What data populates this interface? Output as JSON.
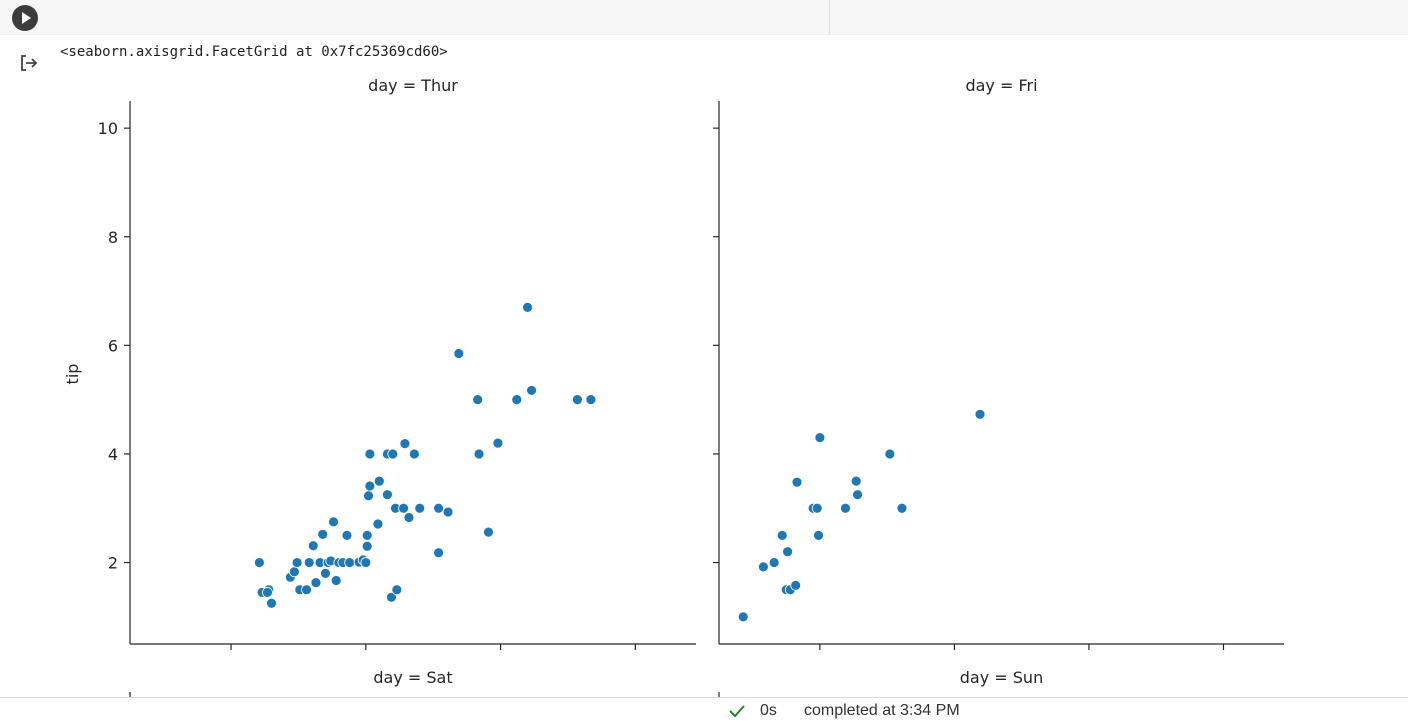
{
  "cell": {
    "output_repr": "<seaborn.axisgrid.FacetGrid at 0x7fc25369cd60>"
  },
  "status": {
    "elapsed": "0s",
    "completed": "completed at 3:34 PM"
  },
  "icons": {
    "run": "play-icon",
    "output": "output-arrow-icon",
    "status": "check-icon"
  },
  "chart_data": {
    "type": "scatter",
    "ylabel": "tip",
    "ylim": [
      0.5,
      10.5
    ],
    "yticks": [
      2,
      4,
      6,
      8,
      10
    ],
    "point_color": "#1f77b4",
    "panels": [
      {
        "title": "day = Thur",
        "points": [
          [
            13.6,
            2.0
          ],
          [
            13.8,
            1.45
          ],
          [
            14.3,
            1.5
          ],
          [
            14.2,
            1.45
          ],
          [
            14.5,
            1.25
          ],
          [
            15.9,
            1.73
          ],
          [
            16.2,
            1.83
          ],
          [
            16.4,
            2.0
          ],
          [
            16.6,
            1.5
          ],
          [
            17.1,
            1.5
          ],
          [
            17.3,
            2.0
          ],
          [
            17.6,
            2.31
          ],
          [
            17.8,
            1.63
          ],
          [
            18.1,
            2.0
          ],
          [
            18.3,
            2.52
          ],
          [
            18.5,
            1.8
          ],
          [
            18.7,
            2.0
          ],
          [
            18.9,
            2.03
          ],
          [
            19.1,
            2.75
          ],
          [
            19.3,
            1.67
          ],
          [
            19.5,
            2.0
          ],
          [
            19.8,
            2.0
          ],
          [
            20.1,
            2.5
          ],
          [
            20.3,
            2.0
          ],
          [
            21.0,
            2.01
          ],
          [
            21.3,
            2.05
          ],
          [
            21.5,
            2.0
          ],
          [
            21.6,
            2.3
          ],
          [
            21.6,
            2.5
          ],
          [
            21.7,
            3.23
          ],
          [
            21.8,
            3.41
          ],
          [
            21.8,
            4.0
          ],
          [
            22.4,
            2.71
          ],
          [
            22.5,
            3.5
          ],
          [
            23.1,
            3.25
          ],
          [
            23.1,
            4.0
          ],
          [
            23.4,
            1.36
          ],
          [
            23.5,
            4.0
          ],
          [
            23.7,
            3.0
          ],
          [
            23.8,
            1.5
          ],
          [
            24.3,
            3.0
          ],
          [
            24.4,
            4.19
          ],
          [
            24.7,
            2.83
          ],
          [
            25.1,
            4.0
          ],
          [
            25.5,
            3.0
          ],
          [
            26.9,
            3.0
          ],
          [
            26.9,
            2.18
          ],
          [
            27.6,
            2.93
          ],
          [
            28.4,
            5.85
          ],
          [
            29.8,
            5.0
          ],
          [
            29.9,
            4.0
          ],
          [
            30.6,
            2.56
          ],
          [
            31.3,
            4.2
          ],
          [
            32.7,
            5.0
          ],
          [
            33.5,
            6.7
          ],
          [
            33.8,
            5.17
          ],
          [
            37.2,
            5.0
          ],
          [
            38.2,
            5.0
          ]
        ]
      },
      {
        "title": "day = Fri",
        "points": [
          [
            5.8,
            1.0
          ],
          [
            7.3,
            1.92
          ],
          [
            8.1,
            2.0
          ],
          [
            8.7,
            2.5
          ],
          [
            9.0,
            1.5
          ],
          [
            9.1,
            2.2
          ],
          [
            9.3,
            1.5
          ],
          [
            9.7,
            1.58
          ],
          [
            9.8,
            3.48
          ],
          [
            11.0,
            3.0
          ],
          [
            11.3,
            3.0
          ],
          [
            11.4,
            2.5
          ],
          [
            11.5,
            4.3
          ],
          [
            13.4,
            3.0
          ],
          [
            14.2,
            3.5
          ],
          [
            14.3,
            3.25
          ],
          [
            16.7,
            4.0
          ],
          [
            17.6,
            3.0
          ],
          [
            23.4,
            4.73
          ]
        ]
      },
      {
        "title": "day = Sat"
      },
      {
        "title": "day = Sun"
      }
    ]
  }
}
